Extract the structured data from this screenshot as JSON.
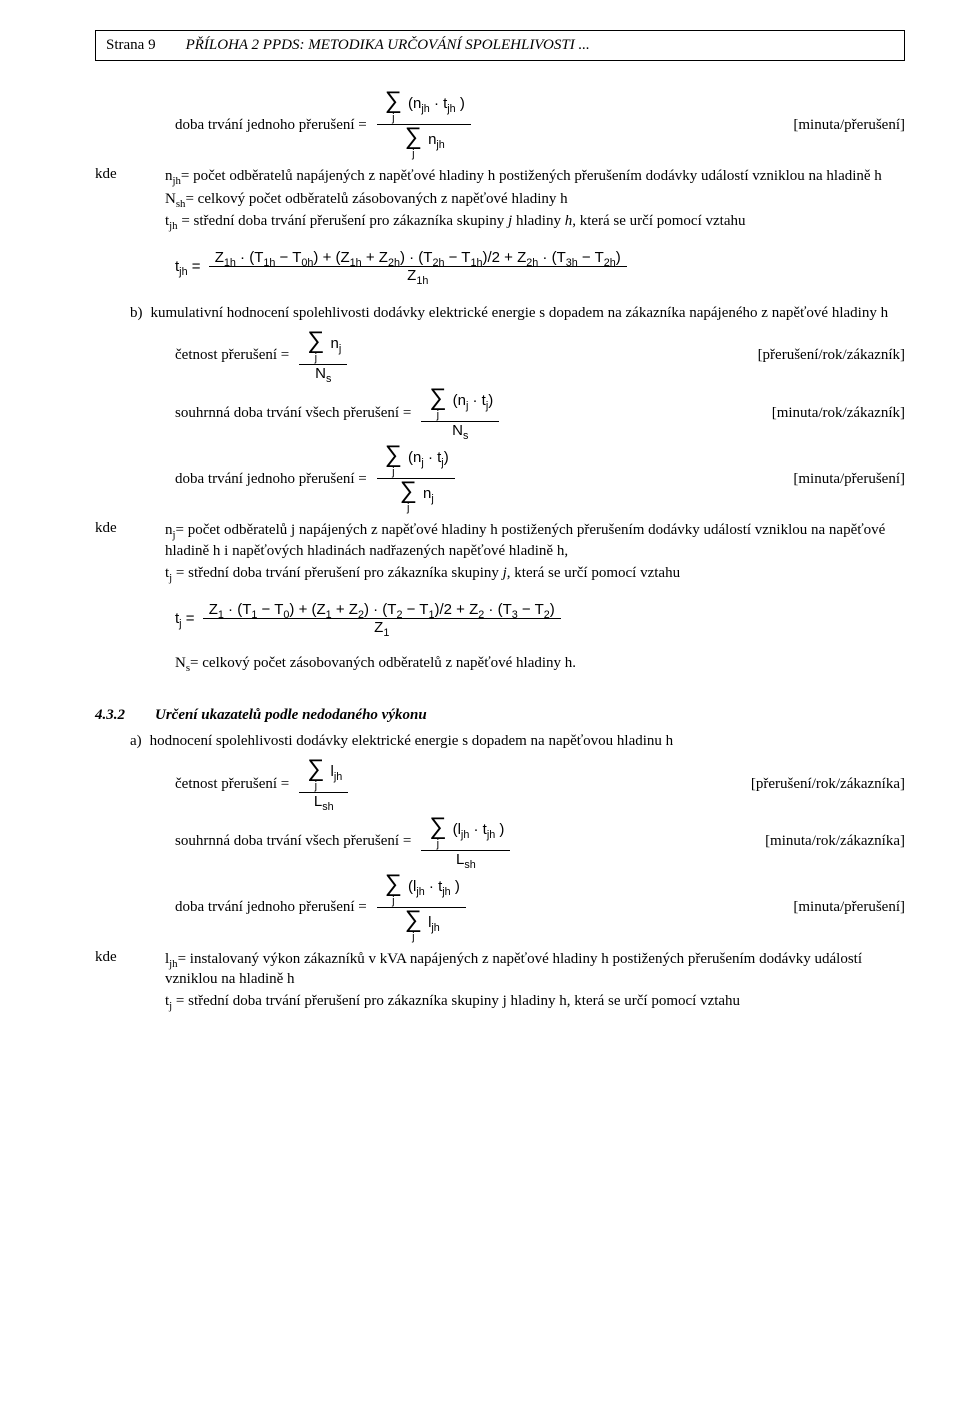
{
  "header": {
    "page": "Strana 9",
    "title": "PŘÍLOHA 2 PPDS: METODIKA URČOVÁNÍ SPOLEHLIVOSTI ..."
  },
  "intro": {
    "line1_lhs": "doba trvání jednoho přerušení =",
    "line1_unit": "[minuta/přerušení]",
    "frac1_num_inner": "(n<sub>jh</sub> · t<sub>jh</sub> )",
    "frac1_den_inner": "n<sub>jh</sub>"
  },
  "kde1": {
    "label": "kde",
    "l1": "n<sub>jh</sub>= počet odběratelů napájených z napěťové hladiny h postižených přerušením dodávky událostí vzniklou na hladině h",
    "l2": "N<sub>sh</sub>= celkový počet odběratelů zásobovaných z napěťové hladiny h",
    "l3": "t<sub>jh</sub> = střední doba trvání přerušení pro zákazníka skupiny <i>j</i> hladiny <i>h</i>, která se určí pomocí vztahu"
  },
  "eq1": {
    "lhs": "t<sub>jh</sub> =",
    "num": "Z<sub>1h</sub> · (T<sub>1h</sub> − T<sub>0h</sub>) + (Z<sub>1h</sub> + Z<sub>2h</sub>) · (T<sub>2h</sub> − T<sub>1h</sub>)/2 + Z<sub>2h</sub> · (T<sub>3h</sub> − T<sub>2h</sub>)",
    "den": "Z<sub>1h</sub>"
  },
  "part_b": {
    "marker": "b)",
    "text": "kumulativní hodnocení spolehlivosti dodávky elektrické energie s dopadem na zákazníka napájeného z napěťové hladiny h"
  },
  "sec_b": {
    "f1_lhs": "četnost přerušení =",
    "f1_unit": "[přerušení/rok/zákazník]",
    "f1_num": "n<sub>j</sub>",
    "f1_den": "N<sub>s</sub>",
    "f2_lhs": "souhrnná doba trvání všech přerušení =",
    "f2_unit": "[minuta/rok/zákazník]",
    "f2_num": "(n<sub>j</sub> · t<sub>j</sub>)",
    "f2_den": "N<sub>s</sub>",
    "f3_lhs": "doba trvání jednoho přerušení  =",
    "f3_unit": "[minuta/přerušení]",
    "f3_num": "(n<sub>j</sub> · t<sub>j</sub>)",
    "f3_den": "n<sub>j</sub>"
  },
  "kde2": {
    "label": "kde",
    "l1": "n<sub>j</sub>= počet odběratelů j napájených z napěťové hladiny h postižených přerušením dodávky událostí vzniklou na napěťové hladině h i napěťových hladinách nadřazených napěťové hladině h,",
    "l2": "t<sub>j</sub> = střední doba trvání přerušení pro zákazníka skupiny <i>j</i>, která se určí pomocí vztahu"
  },
  "eq2": {
    "lhs": "t<sub>j</sub> =",
    "num": "Z<sub>1</sub> · (T<sub>1</sub> − T<sub>0</sub>) + (Z<sub>1</sub> + Z<sub>2</sub>) · (T<sub>2</sub> − T<sub>1</sub>)/2 + Z<sub>2</sub> · (T<sub>3</sub> − T<sub>2</sub>)",
    "den": "Z<sub>1</sub>",
    "after": "N<sub>s</sub>= celkový počet zásobovaných odběratelů z napěťové hladiny h."
  },
  "section432": {
    "num": "4.3.2",
    "title": "Určení ukazatelů podle nedodaného výkonu",
    "a_marker": "a)",
    "a_text": "hodnocení spolehlivosti dodávky elektrické energie s dopadem na napěťovou hladinu h",
    "f1_lhs": "četnost přerušení =",
    "f1_unit": "[přerušení/rok/zákazníka]",
    "f1_num": "l<sub>jh</sub>",
    "f1_den": "L<sub>sh</sub>",
    "f2_lhs": "souhrnná doba trvání všech přerušení =",
    "f2_unit": "[minuta/rok/zákazníka]",
    "f2_num": "(l<sub>jh</sub> · t<sub>jh</sub> )",
    "f2_den": "L<sub>sh</sub>",
    "f3_lhs": "doba trvání jednoho přerušení =",
    "f3_unit": "[minuta/přerušení]",
    "f3_num": "(l<sub>jh</sub> · t<sub>jh</sub> )",
    "f3_den": "l<sub>jh</sub>"
  },
  "kde3": {
    "label": "kde",
    "l1": "l<sub>jh</sub>= instalovaný výkon zákazníků v kVA napájených z napěťové hladiny h postižených přerušením dodávky událostí vzniklou na hladině h",
    "l2": "t<sub>j</sub> = střední doba trvání přerušení pro zákazníka skupiny j hladiny h, která se určí pomocí vztahu"
  },
  "sigma_sub": "j"
}
